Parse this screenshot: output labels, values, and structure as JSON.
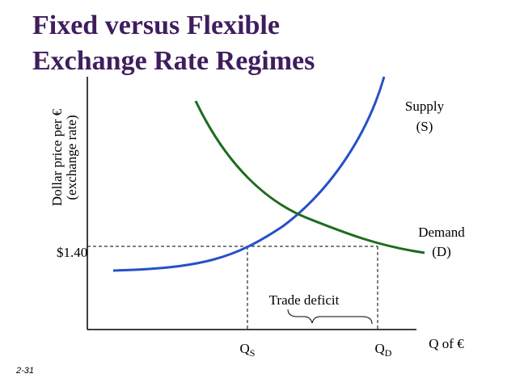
{
  "title": [
    "Fixed versus Flexible",
    "Exchange Rate Regimes"
  ],
  "y_axis_label": [
    "Dollar price per €",
    "(exchange rate)"
  ],
  "x_axis_label": "Q of €",
  "price_label": "$1.40",
  "curves": [
    {
      "label": [
        "Supply",
        "(S)"
      ]
    },
    {
      "label": [
        "Demand",
        "(D)"
      ]
    }
  ],
  "annotation": "Trade deficit",
  "quantities": [
    {
      "main": "Q",
      "sub": "S"
    },
    {
      "main": "Q",
      "sub": "D"
    }
  ],
  "slide_number": "2-31"
}
